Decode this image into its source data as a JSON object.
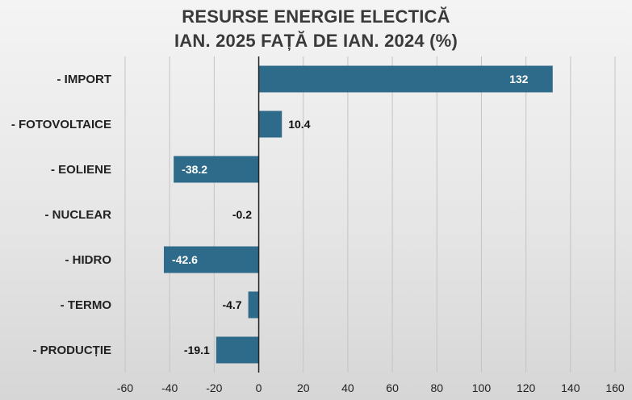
{
  "chart_data": {
    "type": "bar",
    "orientation": "horizontal",
    "title_lines": [
      "RESURSE ENERGIE ELECTICĂ",
      "IAN. 2025 FAȚĂ DE IAN. 2024 (%)"
    ],
    "categories": [
      "- IMPORT",
      "- FOTOVOLTAICE",
      "- EOLIENE",
      "- NUCLEAR",
      "- HIDRO",
      "- TERMO",
      "- PRODUCȚIE"
    ],
    "values": [
      132,
      10.4,
      -38.2,
      -0.2,
      -42.6,
      -4.7,
      -19.1
    ],
    "data_labels": [
      "132",
      "10.4",
      "-38.2",
      "-0.2",
      "-42.6",
      "-4.7",
      "-19.1"
    ],
    "xlim": [
      -60,
      160
    ],
    "xticks": [
      -60,
      -40,
      -20,
      0,
      20,
      40,
      60,
      80,
      100,
      120,
      140,
      160
    ],
    "grid": "vertical",
    "legend": "none",
    "bar_color": "#2e6b8a"
  }
}
